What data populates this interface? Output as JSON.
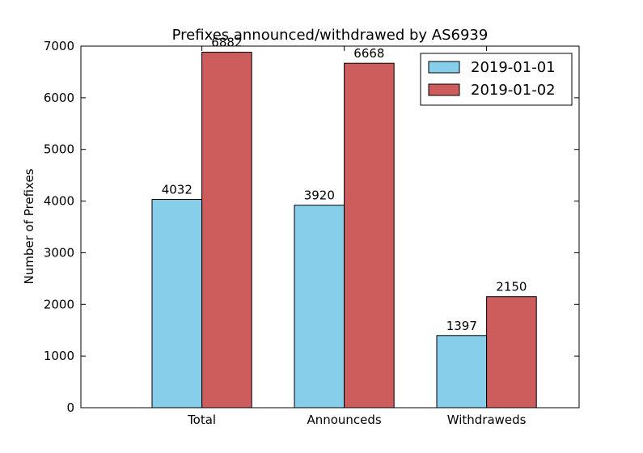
{
  "chart_data": {
    "type": "bar",
    "title": "Prefixes announced/withdrawed by AS6939",
    "xlabel": "",
    "ylabel": "Number of Prefixes",
    "categories": [
      "Total",
      "Announceds",
      "Withdraweds"
    ],
    "series": [
      {
        "name": "2019-01-01",
        "values": [
          4032,
          3920,
          1397
        ],
        "color": "#87ceeb"
      },
      {
        "name": "2019-01-02",
        "values": [
          6882,
          6668,
          2150
        ],
        "color": "#cd5c5c"
      }
    ],
    "ylim": [
      0,
      7000
    ],
    "yticks": [
      0,
      1000,
      2000,
      3000,
      4000,
      5000,
      6000,
      7000
    ],
    "xlim": [
      -0.5,
      3.0
    ],
    "bar_width": 0.35,
    "grid": false,
    "legend_position": "top-right"
  }
}
